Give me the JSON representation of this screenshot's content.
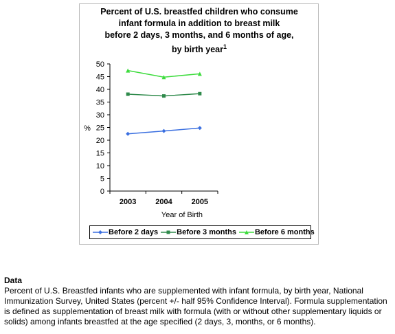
{
  "chart_data": {
    "type": "line",
    "title_lines": [
      "Percent of U.S. breastfed children who consume",
      "infant formula in addition to breast milk",
      "before 2 days, 3 months, and 6 months of age,",
      "by birth year"
    ],
    "title_superscript": "1",
    "categories": [
      "2003",
      "2004",
      "2005"
    ],
    "series": [
      {
        "name": "Before 2 days",
        "values": [
          22.5,
          23.6,
          24.8
        ],
        "color": "#3a6fe0",
        "marker": "diamond"
      },
      {
        "name": "Before 3 months",
        "values": [
          38.1,
          37.4,
          38.3
        ],
        "color": "#2f8a4b",
        "marker": "square"
      },
      {
        "name": "Before 6 months",
        "values": [
          47.4,
          44.8,
          46.1
        ],
        "color": "#3ddc3d",
        "marker": "triangle"
      }
    ],
    "xlabel": "Year of Birth",
    "ylabel": "%",
    "ylim": [
      0,
      50
    ],
    "yticks": [
      0,
      5,
      10,
      15,
      20,
      25,
      30,
      35,
      40,
      45,
      50
    ],
    "grid": false,
    "legend_position": "bottom"
  },
  "data_section": {
    "heading": "Data",
    "body": "Percent of U.S. Breastfed infants who are supplemented with infant formula, by birth year, National Immunization Survey, United States (percent +/- half 95% Confidence Interval). Formula supplementation is defined as supplementation of breast milk with formula (with or without other supplementary liquids or solids) among infants breastfed at the age specified (2 days, 3, months, or 6 months)."
  }
}
